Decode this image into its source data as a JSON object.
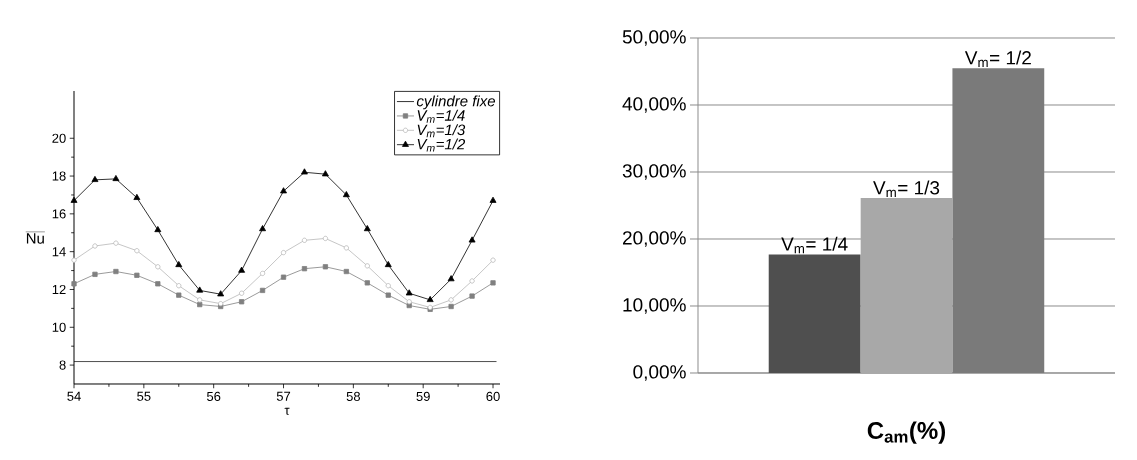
{
  "chart_data": [
    {
      "type": "line",
      "xlabel": "τ",
      "ylabel": "Nu",
      "xlim": [
        54,
        60.1
      ],
      "ylim": [
        7,
        22.5
      ],
      "xticks": [
        54,
        55,
        56,
        57,
        58,
        59,
        60
      ],
      "yticks": [
        8,
        10,
        12,
        14,
        16,
        18,
        20
      ],
      "legend": "top right",
      "grid": false,
      "series": [
        {
          "name": "cylindre fixe",
          "color": "#000000",
          "marker": "none",
          "x": [
            54,
            60.05
          ],
          "values": [
            8.18,
            8.18
          ]
        },
        {
          "name": "V$_{m}$=1/4",
          "color": "#808080",
          "marker": "square",
          "x": [
            54.0,
            54.3,
            54.6,
            54.9,
            55.2,
            55.5,
            55.8,
            56.1,
            56.4,
            56.7,
            57.0,
            57.3,
            57.6,
            57.9,
            58.2,
            58.5,
            58.8,
            59.1,
            59.4,
            59.7,
            60.0
          ],
          "values": [
            12.3,
            12.8,
            12.95,
            12.75,
            12.3,
            11.7,
            11.2,
            11.1,
            11.35,
            11.95,
            12.65,
            13.1,
            13.2,
            12.95,
            12.35,
            11.7,
            11.15,
            10.95,
            11.1,
            11.65,
            12.35
          ]
        },
        {
          "name": "V$_{m}$=1/3",
          "color": "#b8b8b8",
          "marker": "circle",
          "x": [
            54.0,
            54.3,
            54.6,
            54.9,
            55.2,
            55.5,
            55.8,
            56.1,
            56.4,
            56.7,
            57.0,
            57.3,
            57.6,
            57.9,
            58.2,
            58.5,
            58.8,
            59.1,
            59.4,
            59.7,
            60.0
          ],
          "values": [
            13.55,
            14.3,
            14.45,
            14.05,
            13.2,
            12.2,
            11.45,
            11.25,
            11.8,
            12.85,
            13.95,
            14.6,
            14.7,
            14.2,
            13.25,
            12.2,
            11.35,
            11.05,
            11.45,
            12.45,
            13.55
          ]
        },
        {
          "name": "V$_{m}$=1/2",
          "color": "#000000",
          "marker": "triangle",
          "x": [
            54.0,
            54.3,
            54.6,
            54.9,
            55.2,
            55.5,
            55.8,
            56.1,
            56.4,
            56.7,
            57.0,
            57.3,
            57.6,
            57.9,
            58.2,
            58.5,
            58.8,
            59.1,
            59.4,
            59.7,
            60.0
          ],
          "values": [
            16.7,
            17.8,
            17.85,
            16.85,
            15.15,
            13.3,
            11.95,
            11.75,
            13.0,
            15.2,
            17.2,
            18.2,
            18.1,
            17.0,
            15.2,
            13.3,
            11.8,
            11.45,
            12.55,
            14.6,
            16.7
          ]
        }
      ]
    },
    {
      "type": "bar",
      "xlabel": "C$_{am}$(%)",
      "categories": [
        null,
        null,
        null
      ],
      "values": [
        17.7,
        26.1,
        45.5
      ],
      "colors": [
        "#4f4f4f",
        "#a8a8a8",
        "#7a7a7a"
      ],
      "value_labels": [
        "V$_{m}$= 1/4",
        "V$_{m}$= 1/3",
        "V$_{m}$= 1/2"
      ],
      "tick_labels": "y",
      "grid": "y",
      "ylim": [
        0,
        50
      ],
      "yticks": [
        {
          "value": 0,
          "label": "0,00%"
        },
        {
          "value": 10,
          "label": "10,00%"
        },
        {
          "value": 20,
          "label": "20,00%"
        },
        {
          "value": 30,
          "label": "30,00%"
        },
        {
          "value": 40,
          "label": "40,00%"
        },
        {
          "value": 50,
          "label": "50,00%"
        }
      ]
    }
  ]
}
